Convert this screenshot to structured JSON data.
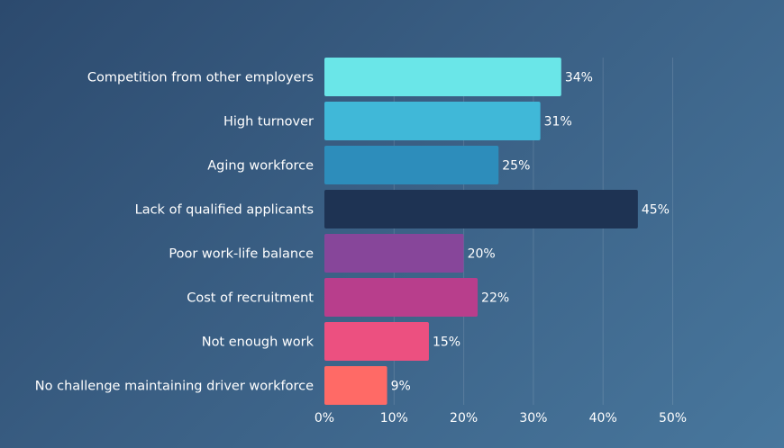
{
  "chart_data": {
    "type": "bar",
    "orientation": "horizontal",
    "title": "",
    "xlabel": "",
    "ylabel": "",
    "categories": [
      "Competition from other employers",
      "High turnover",
      "Aging workforce",
      "Lack of qualified applicants",
      "Poor work-life balance",
      "Cost of recruitment",
      "Not enough work",
      "No challenge maintaining driver workforce"
    ],
    "values": [
      34,
      31,
      25,
      45,
      20,
      22,
      15,
      9
    ],
    "value_labels": [
      "34%",
      "31%",
      "25%",
      "45%",
      "20%",
      "22%",
      "15%",
      "9%"
    ],
    "colors": [
      "#6ae6e8",
      "#40b8d8",
      "#2d8dbb",
      "#1e3353",
      "#87469a",
      "#b83e8c",
      "#ec5080",
      "#ff6a66"
    ],
    "xlim": [
      0,
      50
    ],
    "xticks": [
      0,
      10,
      20,
      30,
      40,
      50
    ],
    "xtick_labels": [
      "0%",
      "10%",
      "20%",
      "30%",
      "40%",
      "50%"
    ],
    "grid": true,
    "legend": "none"
  }
}
